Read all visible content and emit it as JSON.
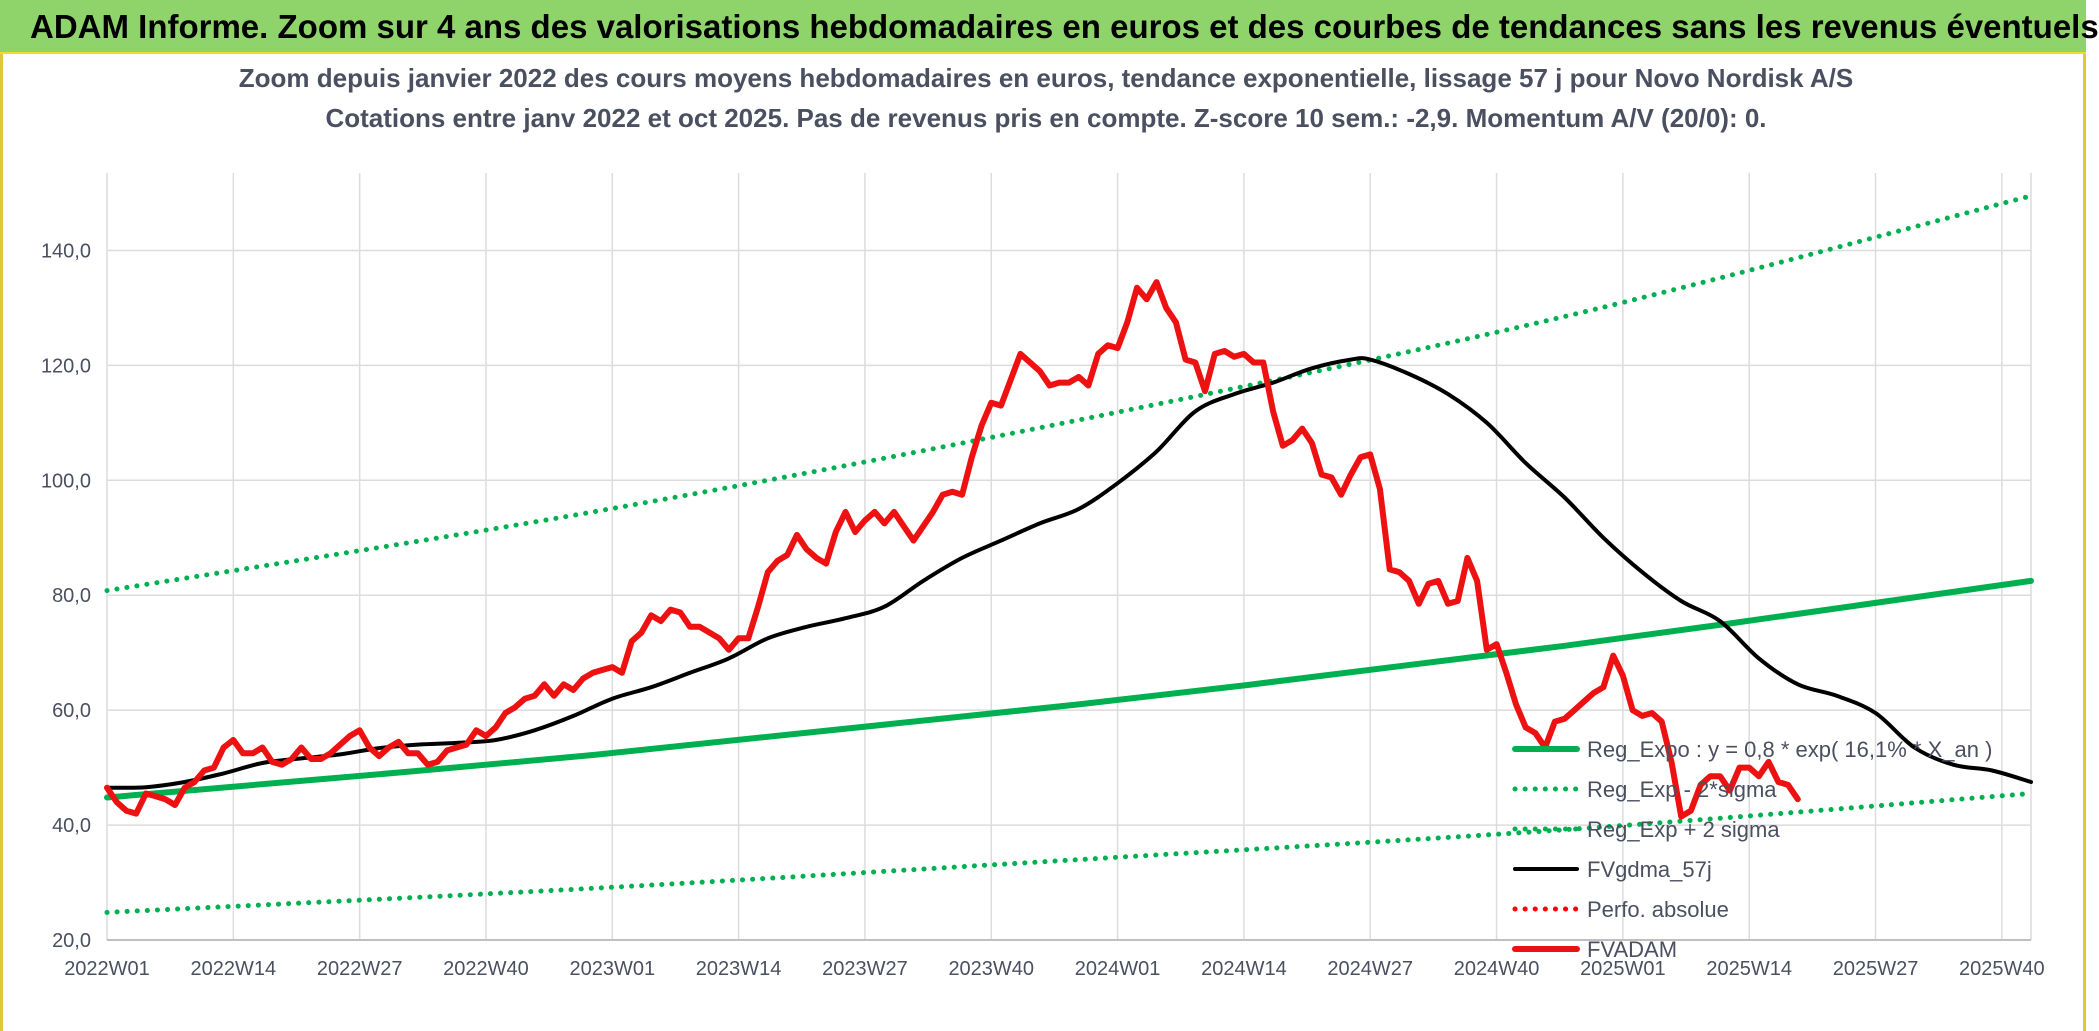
{
  "header": {
    "title": "ADAM Informe. Zoom sur 4 ans des valorisations hebdomadaires en euros et des courbes de tendances sans les revenus éventuels"
  },
  "colors": {
    "banner": "#8fd46a",
    "trend": "#00b050",
    "price": "#ee1111",
    "smooth": "#000000",
    "perf": "#ff0000",
    "grid": "#dcdcdc",
    "axis_text": "#4a5060"
  },
  "chart_data": {
    "type": "line",
    "title": "Zoom depuis janvier 2022 des cours moyens hebdomadaires en euros, tendance exponentielle, lissage 57 j pour Novo Nordisk A/S",
    "subtitle": "Cotations entre janv 2022 et oct 2025. Pas de revenus pris en compte. Z-score 10 sem.: -2,9. Momentum A/V (20/0): 0.",
    "xlabel": "",
    "ylabel": "",
    "ylim": [
      20,
      150
    ],
    "yticks": [
      "20,0",
      "40,0",
      "60,0",
      "80,0",
      "100,0",
      "120,0",
      "140,0"
    ],
    "yticks_values": [
      20,
      40,
      60,
      80,
      100,
      120,
      140
    ],
    "x_range_weeks": [
      0,
      198
    ],
    "xticks": [
      {
        "week": 0,
        "label": "2022W01"
      },
      {
        "week": 13,
        "label": "2022W14"
      },
      {
        "week": 26,
        "label": "2022W27"
      },
      {
        "week": 39,
        "label": "2022W40"
      },
      {
        "week": 52,
        "label": "2023W01"
      },
      {
        "week": 65,
        "label": "2023W14"
      },
      {
        "week": 78,
        "label": "2023W27"
      },
      {
        "week": 91,
        "label": "2023W40"
      },
      {
        "week": 104,
        "label": "2024W01"
      },
      {
        "week": 117,
        "label": "2024W14"
      },
      {
        "week": 130,
        "label": "2024W27"
      },
      {
        "week": 143,
        "label": "2024W40"
      },
      {
        "week": 156,
        "label": "2025W01"
      },
      {
        "week": 169,
        "label": "2025W14"
      },
      {
        "week": 182,
        "label": "2025W27"
      },
      {
        "week": 195,
        "label": "2025W40"
      }
    ],
    "grid": true,
    "legend_position": "bottom-right",
    "series": [
      {
        "name": "Reg_Expo : y = 0,8 * exp( 16,1% * X_an )",
        "style": "solid-thick",
        "color": "#00b050",
        "points": [
          [
            0,
            44.8
          ],
          [
            50,
            52.2
          ],
          [
            100,
            61.0
          ],
          [
            150,
            71.2
          ],
          [
            198,
            82.5
          ]
        ]
      },
      {
        "name": "Reg_Exp - 2*sigma",
        "style": "dotted",
        "color": "#00b050",
        "points": [
          [
            0,
            24.8
          ],
          [
            50,
            29.0
          ],
          [
            100,
            34.0
          ],
          [
            150,
            39.2
          ],
          [
            198,
            45.5
          ]
        ]
      },
      {
        "name": "Reg_Exp + 2 sigma",
        "style": "dotted",
        "color": "#00b050",
        "points": [
          [
            0,
            80.8
          ],
          [
            50,
            94.5
          ],
          [
            100,
            110.5
          ],
          [
            150,
            128.5
          ],
          [
            198,
            149.5
          ]
        ]
      },
      {
        "name": "FVgdma_57j",
        "style": "solid",
        "color": "#000000",
        "points": [
          [
            0,
            46.5
          ],
          [
            4,
            46.6
          ],
          [
            8,
            47.5
          ],
          [
            12,
            49.0
          ],
          [
            16,
            50.8
          ],
          [
            20,
            51.6
          ],
          [
            24,
            52.3
          ],
          [
            28,
            53.4
          ],
          [
            32,
            54.0
          ],
          [
            36,
            54.3
          ],
          [
            40,
            54.8
          ],
          [
            44,
            56.5
          ],
          [
            48,
            59.0
          ],
          [
            52,
            62.0
          ],
          [
            56,
            64.0
          ],
          [
            60,
            66.5
          ],
          [
            64,
            69.0
          ],
          [
            68,
            72.5
          ],
          [
            72,
            74.5
          ],
          [
            76,
            76.0
          ],
          [
            80,
            78.0
          ],
          [
            84,
            82.5
          ],
          [
            88,
            86.5
          ],
          [
            92,
            89.5
          ],
          [
            96,
            92.5
          ],
          [
            100,
            95.0
          ],
          [
            104,
            99.5
          ],
          [
            108,
            105.0
          ],
          [
            112,
            112.0
          ],
          [
            116,
            115.0
          ],
          [
            120,
            117.0
          ],
          [
            124,
            119.5
          ],
          [
            128,
            121.0
          ],
          [
            130,
            121.0
          ],
          [
            134,
            118.5
          ],
          [
            138,
            115.0
          ],
          [
            142,
            110.0
          ],
          [
            146,
            103.0
          ],
          [
            150,
            97.0
          ],
          [
            154,
            90.0
          ],
          [
            158,
            84.0
          ],
          [
            162,
            79.0
          ],
          [
            166,
            75.5
          ],
          [
            170,
            69.0
          ],
          [
            174,
            64.5
          ],
          [
            178,
            62.5
          ],
          [
            182,
            59.5
          ],
          [
            186,
            53.5
          ],
          [
            190,
            50.5
          ],
          [
            194,
            49.5
          ],
          [
            198,
            47.5
          ]
        ]
      },
      {
        "name": "Perfo. absolue",
        "style": "dotted",
        "color": "#ff0000",
        "points": []
      },
      {
        "name": "FVADAM",
        "style": "solid-thick",
        "color": "#ee1111",
        "points": [
          [
            0,
            46.5
          ],
          [
            1,
            44.0
          ],
          [
            2,
            42.5
          ],
          [
            3,
            42.0
          ],
          [
            4,
            45.5
          ],
          [
            5,
            45.0
          ],
          [
            6,
            44.5
          ],
          [
            7,
            43.5
          ],
          [
            8,
            46.5
          ],
          [
            9,
            47.5
          ],
          [
            10,
            49.5
          ],
          [
            11,
            50.0
          ],
          [
            12,
            53.5
          ],
          [
            13,
            54.8
          ],
          [
            14,
            52.5
          ],
          [
            15,
            52.5
          ],
          [
            16,
            53.5
          ],
          [
            17,
            51.0
          ],
          [
            18,
            50.5
          ],
          [
            19,
            51.5
          ],
          [
            20,
            53.5
          ],
          [
            21,
            51.5
          ],
          [
            22,
            51.5
          ],
          [
            23,
            52.5
          ],
          [
            24,
            54.0
          ],
          [
            25,
            55.5
          ],
          [
            26,
            56.5
          ],
          [
            27,
            53.5
          ],
          [
            28,
            52.0
          ],
          [
            29,
            53.5
          ],
          [
            30,
            54.5
          ],
          [
            31,
            52.5
          ],
          [
            32,
            52.5
          ],
          [
            33,
            50.5
          ],
          [
            34,
            51.0
          ],
          [
            35,
            53.0
          ],
          [
            36,
            53.5
          ],
          [
            37,
            54.0
          ],
          [
            38,
            56.5
          ],
          [
            39,
            55.5
          ],
          [
            40,
            57.0
          ],
          [
            41,
            59.5
          ],
          [
            42,
            60.5
          ],
          [
            43,
            62.0
          ],
          [
            44,
            62.5
          ],
          [
            45,
            64.5
          ],
          [
            46,
            62.5
          ],
          [
            47,
            64.5
          ],
          [
            48,
            63.5
          ],
          [
            49,
            65.5
          ],
          [
            50,
            66.5
          ],
          [
            51,
            67.0
          ],
          [
            52,
            67.5
          ],
          [
            53,
            66.5
          ],
          [
            54,
            72.0
          ],
          [
            55,
            73.5
          ],
          [
            56,
            76.5
          ],
          [
            57,
            75.5
          ],
          [
            58,
            77.5
          ],
          [
            59,
            77.0
          ],
          [
            60,
            74.5
          ],
          [
            61,
            74.5
          ],
          [
            62,
            73.5
          ],
          [
            63,
            72.5
          ],
          [
            64,
            70.5
          ],
          [
            65,
            72.5
          ],
          [
            66,
            72.5
          ],
          [
            67,
            78.0
          ],
          [
            68,
            84.0
          ],
          [
            69,
            86.0
          ],
          [
            70,
            87.0
          ],
          [
            71,
            90.5
          ],
          [
            72,
            88.0
          ],
          [
            73,
            86.5
          ],
          [
            74,
            85.5
          ],
          [
            75,
            91.0
          ],
          [
            76,
            94.5
          ],
          [
            77,
            91.0
          ],
          [
            78,
            93.0
          ],
          [
            79,
            94.5
          ],
          [
            80,
            92.5
          ],
          [
            81,
            94.5
          ],
          [
            82,
            92.0
          ],
          [
            83,
            89.5
          ],
          [
            84,
            92.0
          ],
          [
            85,
            94.5
          ],
          [
            86,
            97.5
          ],
          [
            87,
            98.0
          ],
          [
            88,
            97.5
          ],
          [
            89,
            104.0
          ],
          [
            90,
            109.5
          ],
          [
            91,
            113.5
          ],
          [
            92,
            113.0
          ],
          [
            93,
            117.5
          ],
          [
            94,
            122.0
          ],
          [
            95,
            120.5
          ],
          [
            96,
            119.0
          ],
          [
            97,
            116.5
          ],
          [
            98,
            117.0
          ],
          [
            99,
            117.0
          ],
          [
            100,
            118.0
          ],
          [
            101,
            116.5
          ],
          [
            102,
            122.0
          ],
          [
            103,
            123.5
          ],
          [
            104,
            123.0
          ],
          [
            105,
            127.5
          ],
          [
            106,
            133.5
          ],
          [
            107,
            131.5
          ],
          [
            108,
            134.5
          ],
          [
            109,
            130.0
          ],
          [
            110,
            127.5
          ],
          [
            111,
            121.0
          ],
          [
            112,
            120.5
          ],
          [
            113,
            115.5
          ],
          [
            114,
            122.0
          ],
          [
            115,
            122.5
          ],
          [
            116,
            121.5
          ],
          [
            117,
            122.0
          ],
          [
            118,
            120.5
          ],
          [
            119,
            120.5
          ],
          [
            120,
            112.0
          ],
          [
            121,
            106.0
          ],
          [
            122,
            107.0
          ],
          [
            123,
            109.0
          ],
          [
            124,
            106.5
          ],
          [
            125,
            101.0
          ],
          [
            126,
            100.5
          ],
          [
            127,
            97.5
          ],
          [
            128,
            101.0
          ],
          [
            129,
            104.0
          ],
          [
            130,
            104.5
          ],
          [
            131,
            98.5
          ],
          [
            132,
            84.5
          ],
          [
            133,
            84.0
          ],
          [
            134,
            82.5
          ],
          [
            135,
            78.5
          ],
          [
            136,
            82.0
          ],
          [
            137,
            82.5
          ],
          [
            138,
            78.5
          ],
          [
            139,
            79.0
          ],
          [
            140,
            86.5
          ],
          [
            141,
            82.5
          ],
          [
            142,
            70.5
          ],
          [
            143,
            71.5
          ],
          [
            144,
            66.5
          ],
          [
            145,
            61.0
          ],
          [
            146,
            57.0
          ],
          [
            147,
            56.0
          ],
          [
            148,
            53.5
          ],
          [
            149,
            58.0
          ],
          [
            150,
            58.5
          ],
          [
            151,
            60.0
          ],
          [
            152,
            61.5
          ],
          [
            153,
            63.0
          ],
          [
            154,
            64.0
          ],
          [
            155,
            69.5
          ],
          [
            156,
            66.0
          ],
          [
            157,
            60.0
          ],
          [
            158,
            59.0
          ],
          [
            159,
            59.5
          ],
          [
            160,
            58.0
          ],
          [
            161,
            51.0
          ],
          [
            162,
            41.5
          ],
          [
            163,
            42.5
          ],
          [
            164,
            47.0
          ],
          [
            165,
            48.5
          ],
          [
            166,
            48.5
          ],
          [
            167,
            46.0
          ],
          [
            168,
            50.0
          ],
          [
            169,
            50.0
          ],
          [
            170,
            48.5
          ],
          [
            171,
            51.0
          ],
          [
            172,
            47.5
          ],
          [
            173,
            47.0
          ],
          [
            174,
            44.5
          ]
        ]
      }
    ]
  }
}
